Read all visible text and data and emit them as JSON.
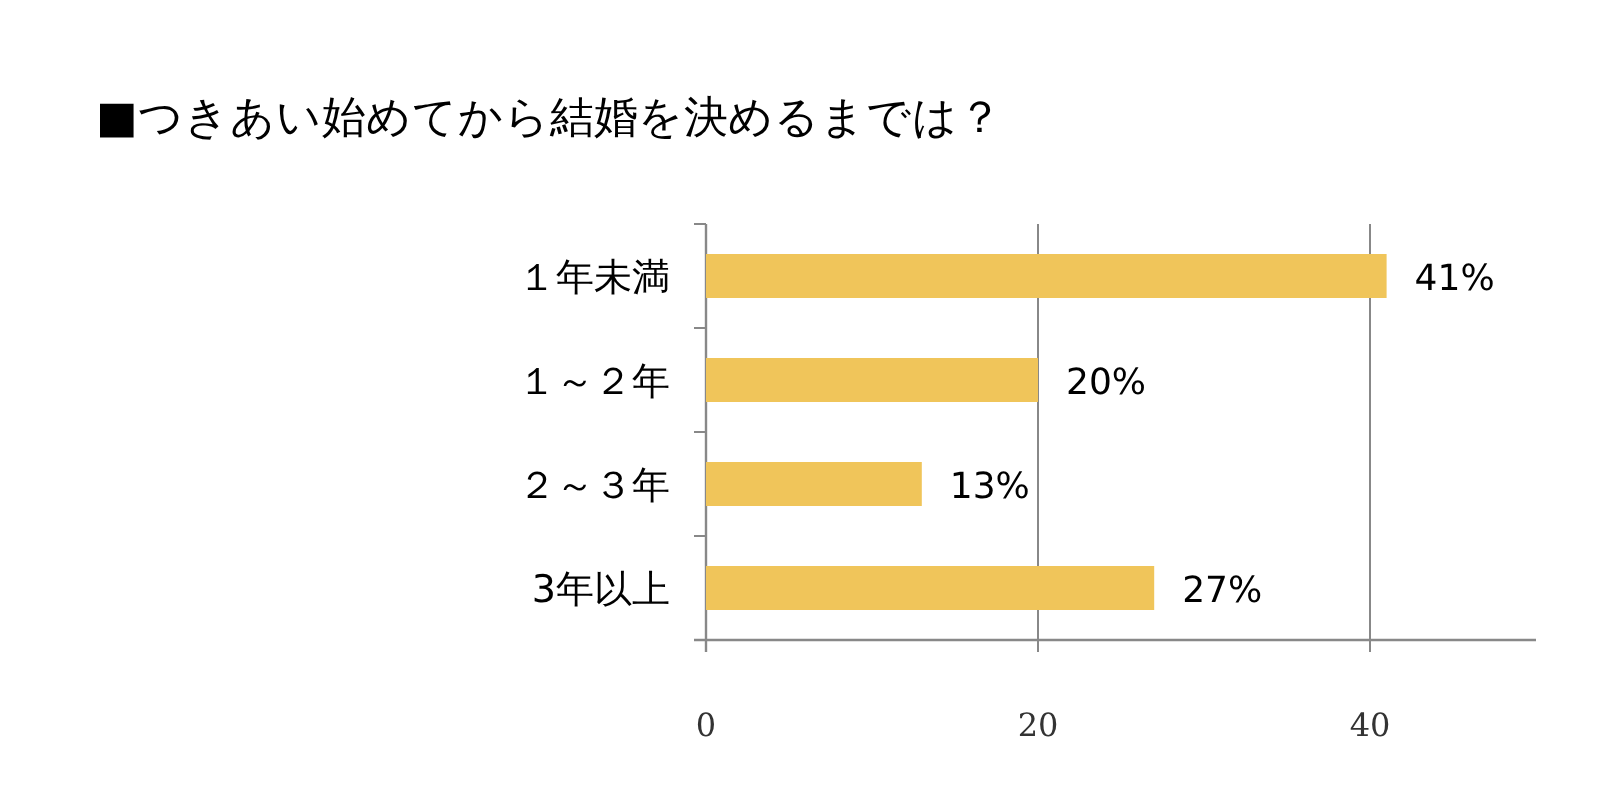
{
  "chart_data": {
    "type": "bar",
    "orientation": "horizontal",
    "title": "■つきあい始めてから結婚を決めるまでは？",
    "categories": [
      "１年未満",
      "１～２年",
      "２～３年",
      "3年以上"
    ],
    "values": [
      41,
      20,
      13,
      27
    ],
    "value_labels": [
      "41%",
      "20%",
      "13%",
      "27%"
    ],
    "color": "#f0c55a",
    "xlim": [
      0,
      50
    ],
    "xticks": [
      0,
      20,
      40
    ],
    "grid": "x"
  }
}
